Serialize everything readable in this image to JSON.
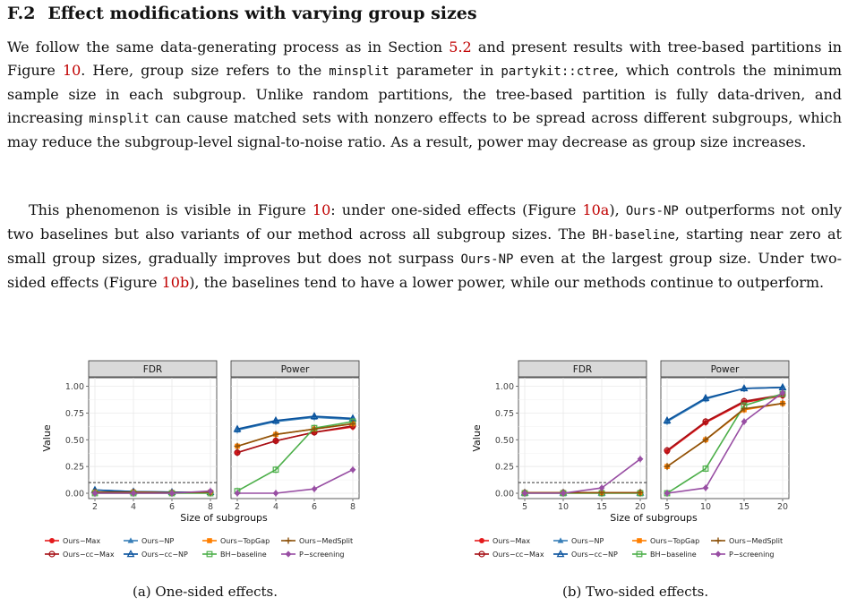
{
  "section": {
    "number": "F.2",
    "title": "Effect modifications with varying group sizes"
  },
  "paragraph1": {
    "s1": "We follow the same data-generating process as in Section ",
    "ref_section": "5.2",
    "s2": " and present results with tree-based partitions in Figure ",
    "ref_fig": "10",
    "s3": ". Here, group size refers to the ",
    "code1": "minsplit",
    "s4": " parameter in ",
    "code2": "partykit::ctree",
    "s5": ", which controls the minimum sample size in each subgroup. Unlike random partitions, the tree-based partition is fully data-driven, and increasing ",
    "code3": "minsplit",
    "s6": " can cause matched sets with nonzero effects to be spread across different subgroups, which may reduce the subgroup-level signal-to-noise ratio. As a result, power may decrease as group size increases."
  },
  "paragraph2": {
    "s1": "This phenomenon is visible in Figure ",
    "ref_fig": "10",
    "s2": ": under one-sided effects (Figure ",
    "ref_a": "10a",
    "s3": "), ",
    "code1": "Ours-NP",
    "s4": " outperforms not only two baselines but also variants of our method across all subgroup sizes. The ",
    "code2": "BH-baseline",
    "s5": ", starting near zero at small group sizes, gradually improves but does not surpass ",
    "code3": "Ours-NP",
    "s6": " even at the largest group size. Under two-sided effects (Figure ",
    "ref_b": "10b",
    "s7": "), the baselines tend to have a lower power, while our methods continue to outperform."
  },
  "captions": {
    "a": "(a) One-sided effects.",
    "b": "(b) Two-sided effects."
  },
  "chart_data": [
    {
      "type": "line",
      "facets": [
        "FDR",
        "Power"
      ],
      "xlabel": "Size of subgroups",
      "ylabel": "Value",
      "x": [
        2,
        4,
        6,
        8
      ],
      "xticks": [
        "2",
        "4",
        "6",
        "8"
      ],
      "ylim": [
        0,
        1
      ],
      "yticks": [
        "0.00",
        "0.25",
        "0.50",
        "0.75",
        "1.00"
      ],
      "reference_line": 0.1,
      "legend_position": "bottom",
      "series": [
        {
          "name": "Ours−Max",
          "color": "#e41a1c",
          "marker": "circle",
          "fdr": [
            0.01,
            0.01,
            0.005,
            0.01
          ],
          "power": [
            0.38,
            0.49,
            0.57,
            0.62
          ]
        },
        {
          "name": "Ours−cc−Max",
          "color": "#a50f15",
          "marker": "circle-open",
          "fdr": [
            0.01,
            0.01,
            0.005,
            0.01
          ],
          "power": [
            0.38,
            0.49,
            0.57,
            0.63
          ]
        },
        {
          "name": "Ours−NP",
          "color": "#377eb8",
          "marker": "triangle",
          "fdr": [
            0.03,
            0.015,
            0.01,
            0.01
          ],
          "power": [
            0.59,
            0.67,
            0.71,
            0.69
          ]
        },
        {
          "name": "Ours−cc−NP",
          "color": "#08519c",
          "marker": "triangle-open",
          "fdr": [
            0.03,
            0.015,
            0.01,
            0.01
          ],
          "power": [
            0.6,
            0.68,
            0.72,
            0.7
          ]
        },
        {
          "name": "Ours−TopGap",
          "color": "#ff7f00",
          "marker": "square",
          "fdr": [
            0.01,
            0.01,
            0.005,
            0.01
          ],
          "power": [
            0.44,
            0.55,
            0.6,
            0.65
          ]
        },
        {
          "name": "BH−baseline",
          "color": "#4daf4a",
          "marker": "square-open",
          "fdr": [
            0.0,
            0.0,
            0.0,
            0.0
          ],
          "power": [
            0.02,
            0.22,
            0.61,
            0.67
          ]
        },
        {
          "name": "Ours−MedSplit",
          "color": "#8c510a",
          "marker": "plus",
          "fdr": [
            0.01,
            0.01,
            0.005,
            0.01
          ],
          "power": [
            0.44,
            0.55,
            0.6,
            0.65
          ]
        },
        {
          "name": "P−screening",
          "color": "#984ea3",
          "marker": "diamond",
          "fdr": [
            0.0,
            0.0,
            0.0,
            0.02
          ],
          "power": [
            0.0,
            0.0,
            0.04,
            0.22
          ]
        }
      ]
    },
    {
      "type": "line",
      "facets": [
        "FDR",
        "Power"
      ],
      "xlabel": "Size of subgroups",
      "ylabel": "Value",
      "x": [
        5,
        10,
        15,
        20
      ],
      "xticks": [
        "5",
        "10",
        "15",
        "20"
      ],
      "ylim": [
        0,
        1
      ],
      "yticks": [
        "0.00",
        "0.25",
        "0.50",
        "0.75",
        "1.00"
      ],
      "reference_line": 0.1,
      "legend_position": "bottom",
      "series": [
        {
          "name": "Ours−Max",
          "color": "#e41a1c",
          "marker": "circle",
          "fdr": [
            0.005,
            0.005,
            0.005,
            0.005
          ],
          "power": [
            0.39,
            0.66,
            0.85,
            0.91
          ]
        },
        {
          "name": "Ours−cc−Max",
          "color": "#a50f15",
          "marker": "circle-open",
          "fdr": [
            0.005,
            0.005,
            0.005,
            0.005
          ],
          "power": [
            0.4,
            0.67,
            0.86,
            0.92
          ]
        },
        {
          "name": "Ours−NP",
          "color": "#377eb8",
          "marker": "triangle",
          "fdr": [
            0.005,
            0.005,
            0.005,
            0.005
          ],
          "power": [
            0.67,
            0.88,
            0.98,
            0.99
          ]
        },
        {
          "name": "Ours−cc−NP",
          "color": "#08519c",
          "marker": "triangle-open",
          "fdr": [
            0.005,
            0.005,
            0.005,
            0.005
          ],
          "power": [
            0.68,
            0.89,
            0.98,
            0.99
          ]
        },
        {
          "name": "Ours−TopGap",
          "color": "#ff7f00",
          "marker": "square",
          "fdr": [
            0.005,
            0.005,
            0.005,
            0.005
          ],
          "power": [
            0.25,
            0.5,
            0.78,
            0.84
          ]
        },
        {
          "name": "BH−baseline",
          "color": "#4daf4a",
          "marker": "square-open",
          "fdr": [
            0.0,
            0.0,
            0.0,
            0.0
          ],
          "power": [
            0.0,
            0.23,
            0.82,
            0.93
          ]
        },
        {
          "name": "Ours−MedSplit",
          "color": "#8c510a",
          "marker": "plus",
          "fdr": [
            0.005,
            0.005,
            0.005,
            0.005
          ],
          "power": [
            0.25,
            0.5,
            0.79,
            0.84
          ]
        },
        {
          "name": "P−screening",
          "color": "#984ea3",
          "marker": "diamond",
          "fdr": [
            0.0,
            0.0,
            0.05,
            0.32
          ],
          "power": [
            0.0,
            0.05,
            0.67,
            0.94
          ]
        }
      ]
    }
  ]
}
